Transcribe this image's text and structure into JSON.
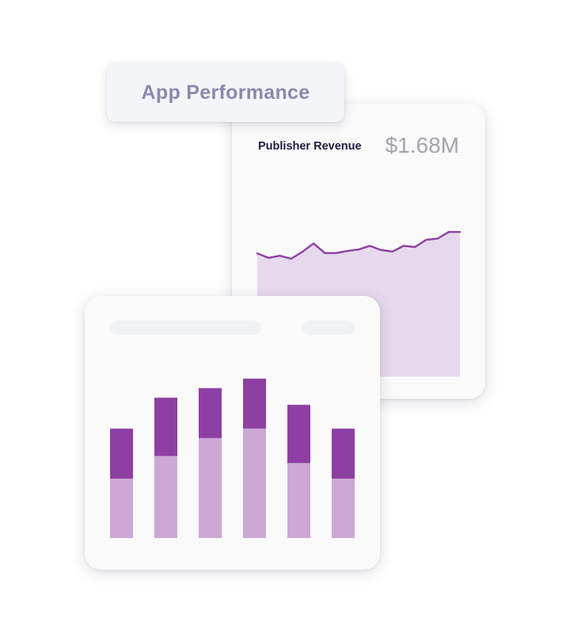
{
  "header": {
    "title": "App Performance"
  },
  "revenue_card": {
    "label": "Publisher Revenue",
    "value": "$1.68M"
  },
  "colors": {
    "line": "#8e3fa3",
    "area_fill": "#e6d9ee",
    "bar_dark": "#8e3fa3",
    "bar_light": "#cda8d5"
  },
  "chart_data": [
    {
      "type": "area",
      "y": [
        41,
        39.5,
        40.2,
        39.2,
        41.5,
        44.3,
        41.1,
        41.1,
        41.8,
        42.3,
        43.5,
        42.1,
        41.6,
        43.5,
        43.1,
        45.5,
        45.9,
        48.1,
        48.1
      ],
      "ylim": [
        0,
        65
      ]
    },
    {
      "type": "bar",
      "stacked": true,
      "categories": [
        "",
        "",
        "",
        "",
        "",
        ""
      ],
      "series": [
        {
          "values": [
            50,
            69,
            84,
            92,
            63,
            50
          ]
        },
        {
          "values": [
            42,
            49,
            42,
            42,
            49,
            42
          ]
        }
      ],
      "ylim": [
        0,
        135
      ]
    }
  ]
}
